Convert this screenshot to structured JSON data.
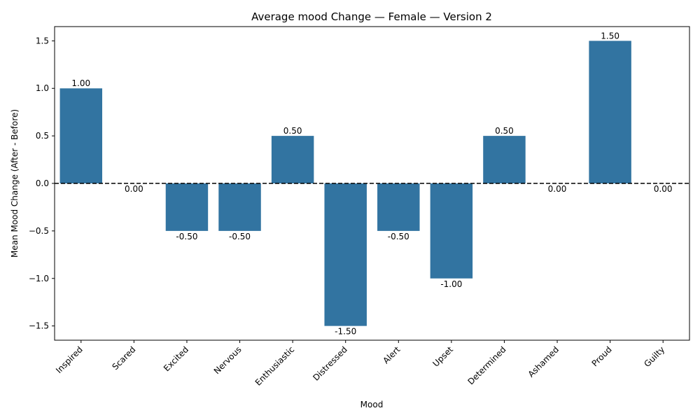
{
  "chart_data": {
    "type": "bar",
    "title": "Average mood Change — Female — Version 2",
    "xlabel": "Mood",
    "ylabel": "Mean Mood Change (After - Before)",
    "categories": [
      "Inspired",
      "Scared",
      "Excited",
      "Nervous",
      "Enthusiastic",
      "Distressed",
      "Alert",
      "Upset",
      "Determined",
      "Ashamed",
      "Proud",
      "Guilty"
    ],
    "values": [
      1.0,
      0.0,
      -0.5,
      -0.5,
      0.5,
      -1.5,
      -0.5,
      -1.0,
      0.5,
      0.0,
      1.5,
      0.0
    ],
    "data_labels": [
      "1.00",
      "0.00",
      "-0.50",
      "-0.50",
      "0.50",
      "-1.50",
      "-0.50",
      "-1.00",
      "0.50",
      "0.00",
      "1.50",
      "0.00"
    ],
    "ylim": [
      -1.65,
      1.65
    ],
    "yticks": [
      -1.5,
      -1.0,
      -0.5,
      0.0,
      0.5,
      1.0,
      1.5
    ],
    "ytick_labels": [
      "−1.5",
      "−1.0",
      "−0.5",
      "0.0",
      "0.5",
      "1.0",
      "1.5"
    ],
    "reference_line": 0,
    "grid": false,
    "colors": {
      "bar": "#3274a1",
      "reference_line": "#000000",
      "axis": "#000000"
    }
  }
}
